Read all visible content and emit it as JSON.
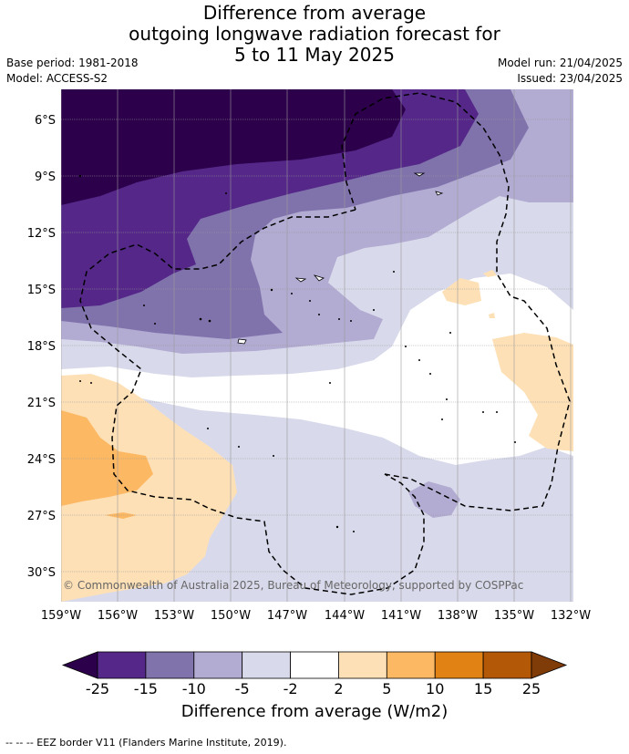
{
  "title": {
    "line1": "Difference from average",
    "line2": "outgoing longwave radiation forecast for",
    "line3": "5 to 11 May 2025"
  },
  "meta": {
    "base_period": "Base period: 1981-2018",
    "model": "Model: ACCESS-S2",
    "model_run": "Model run: 21/04/2025",
    "issued": "Issued: 23/04/2025"
  },
  "map": {
    "lat_labels": [
      "6°S",
      "9°S",
      "12°S",
      "15°S",
      "18°S",
      "21°S",
      "24°S",
      "27°S",
      "30°S"
    ],
    "lon_labels": [
      "159°W",
      "156°W",
      "153°W",
      "150°W",
      "147°W",
      "144°W",
      "141°W",
      "138°W",
      "135°W",
      "132°W"
    ],
    "copyright": "© Commonwealth of Australia 2025, Bureau of Meteorology, supported by COSPPac"
  },
  "colorbar": {
    "ticks": [
      "-25",
      "-15",
      "-10",
      "-5",
      "-2",
      "2",
      "5",
      "10",
      "15",
      "25"
    ],
    "colors": [
      "#2d004b",
      "#542788",
      "#8073ac",
      "#b2abd2",
      "#d8daeb",
      "#ffffff",
      "#fee0b6",
      "#fdb863",
      "#e08214",
      "#b35806",
      "#7f3b08"
    ],
    "label": "Difference from average (W/m2)"
  },
  "footer": "--  --  -- EEZ border V11 (Flanders Marine Institute, 2019)."
}
